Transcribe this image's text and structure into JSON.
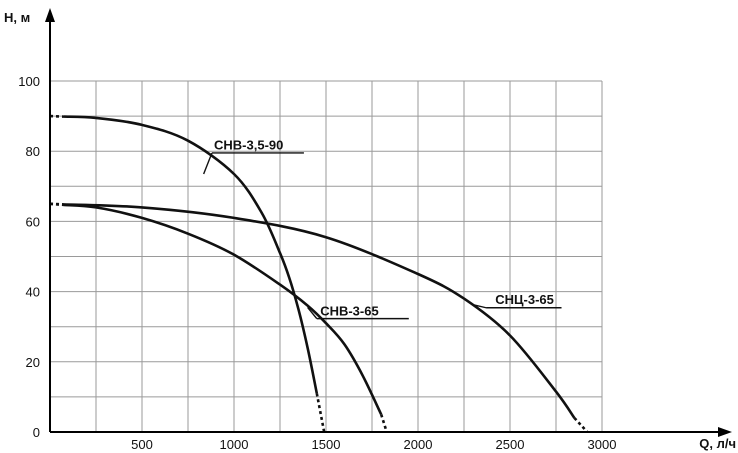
{
  "chart_data": {
    "type": "line",
    "xlabel": "Q, л/ч",
    "ylabel": "H, м",
    "xlim": [
      0,
      3750
    ],
    "ylim": [
      0,
      100
    ],
    "x_ticks": [
      500,
      1000,
      1500,
      2000,
      2500,
      3000
    ],
    "x_tick_labels": [
      "500",
      "1000",
      "1500",
      "2000",
      "2500",
      "3000"
    ],
    "y_ticks": [
      0,
      20,
      40,
      60,
      80,
      100
    ],
    "y_tick_labels": [
      "0",
      "20",
      "40",
      "60",
      "80",
      "100"
    ],
    "grid": true,
    "series": [
      {
        "name": "СНВ-3,5-90",
        "x": [
          0,
          250,
          500,
          750,
          1000,
          1150,
          1250,
          1300,
          1350,
          1400,
          1450,
          1490
        ],
        "y": [
          90,
          89.5,
          87.5,
          83,
          73.5,
          62.5,
          51,
          44,
          35,
          24,
          11,
          0
        ]
      },
      {
        "name": "СНВ-3-65",
        "x": [
          0,
          250,
          500,
          750,
          1000,
          1250,
          1400,
          1500,
          1600,
          1700,
          1800,
          1830
        ],
        "y": [
          65,
          64,
          61,
          56.5,
          50.5,
          42,
          36,
          31,
          25,
          16,
          5,
          0
        ]
      },
      {
        "name": "СНЦ-3-65",
        "x": [
          0,
          500,
          1000,
          1500,
          2000,
          2250,
          2500,
          2750,
          2850,
          2920
        ],
        "y": [
          65,
          64,
          61,
          55.5,
          45,
          38,
          27.5,
          11.5,
          4,
          0
        ]
      }
    ]
  }
}
